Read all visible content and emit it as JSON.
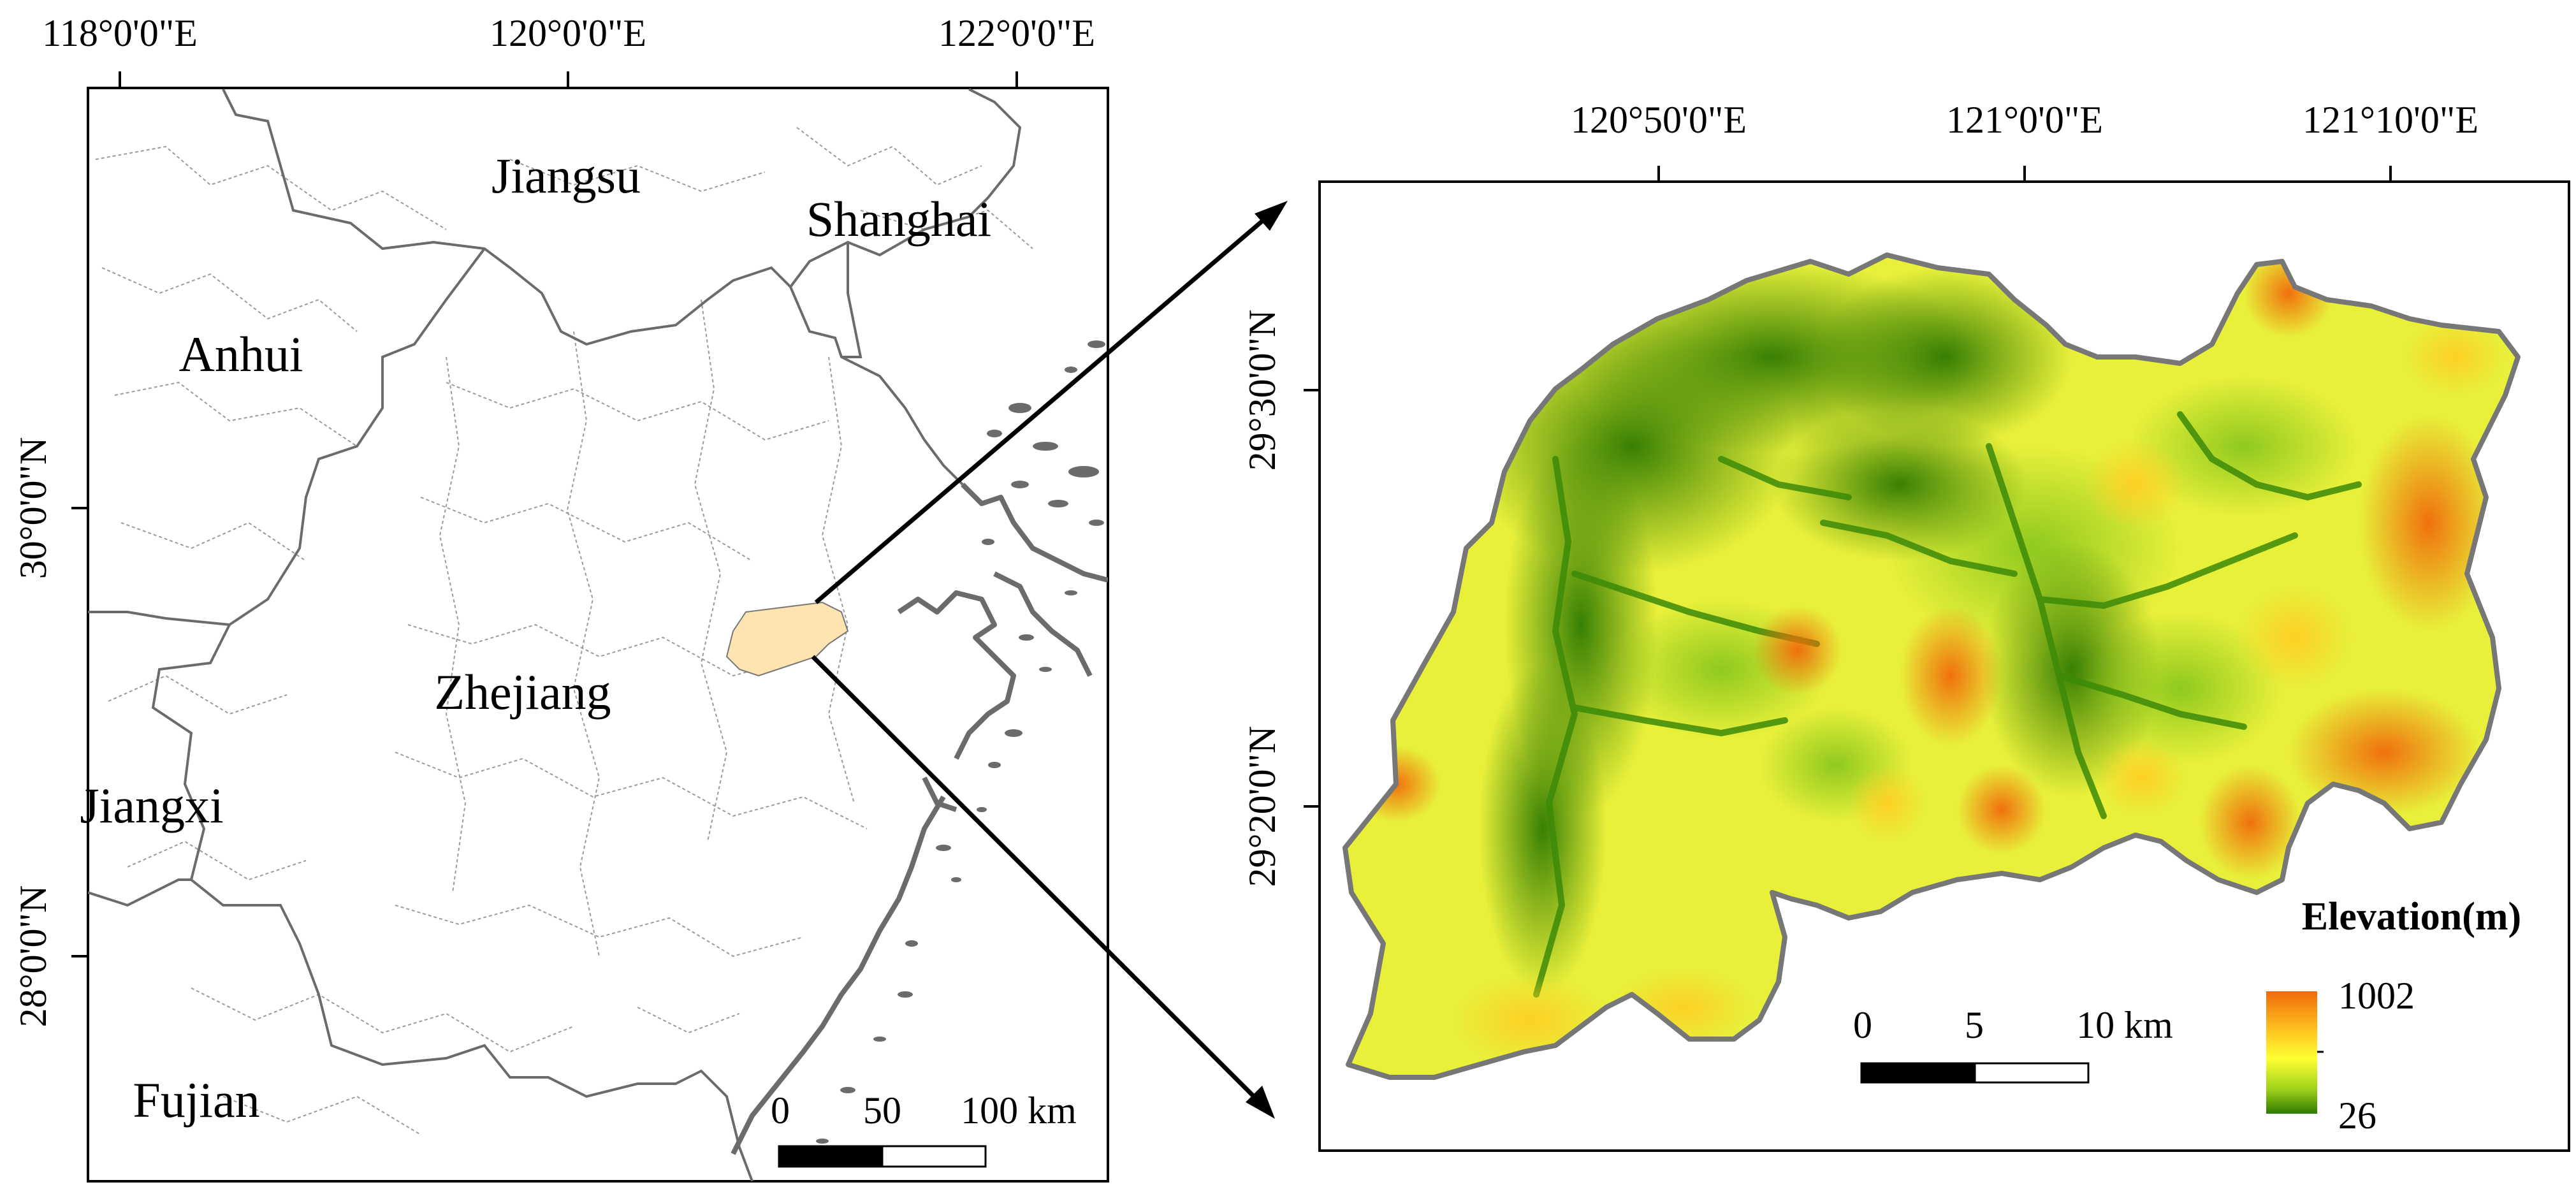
{
  "colors": {
    "study_area_fill": "#fde4b0",
    "province_border": "#6b6b6b",
    "county_border": "#9a9a9a",
    "elevation_low": "#2f7a00",
    "elevation_mid": "#ffff33",
    "elevation_high": "#f06a0a",
    "frame": "#000000"
  },
  "left_map": {
    "lon_ticks": [
      "118°0'0\"E",
      "120°0'0\"E",
      "122°0'0\"E"
    ],
    "lat_ticks": [
      "30°0'0\"N",
      "28°0'0\"N"
    ],
    "provinces": [
      "Jiangsu",
      "Shanghai",
      "Anhui",
      "Zhejiang",
      "Jiangxi",
      "Fujian"
    ],
    "scalebar": {
      "labels": [
        "0",
        "50",
        "100 km"
      ]
    }
  },
  "right_map": {
    "lon_ticks": [
      "120°50'0\"E",
      "121°0'0\"E",
      "121°10'0\"E"
    ],
    "lat_ticks": [
      "29°30'0\"N",
      "29°20'0\"N"
    ],
    "scalebar": {
      "labels": [
        "0",
        "5",
        "10 km"
      ]
    },
    "legend": {
      "title": "Elevation(m)",
      "max": "1002",
      "min": "26"
    }
  },
  "icons": [
    "north-east-arrow-icon",
    "south-east-arrow-icon"
  ]
}
